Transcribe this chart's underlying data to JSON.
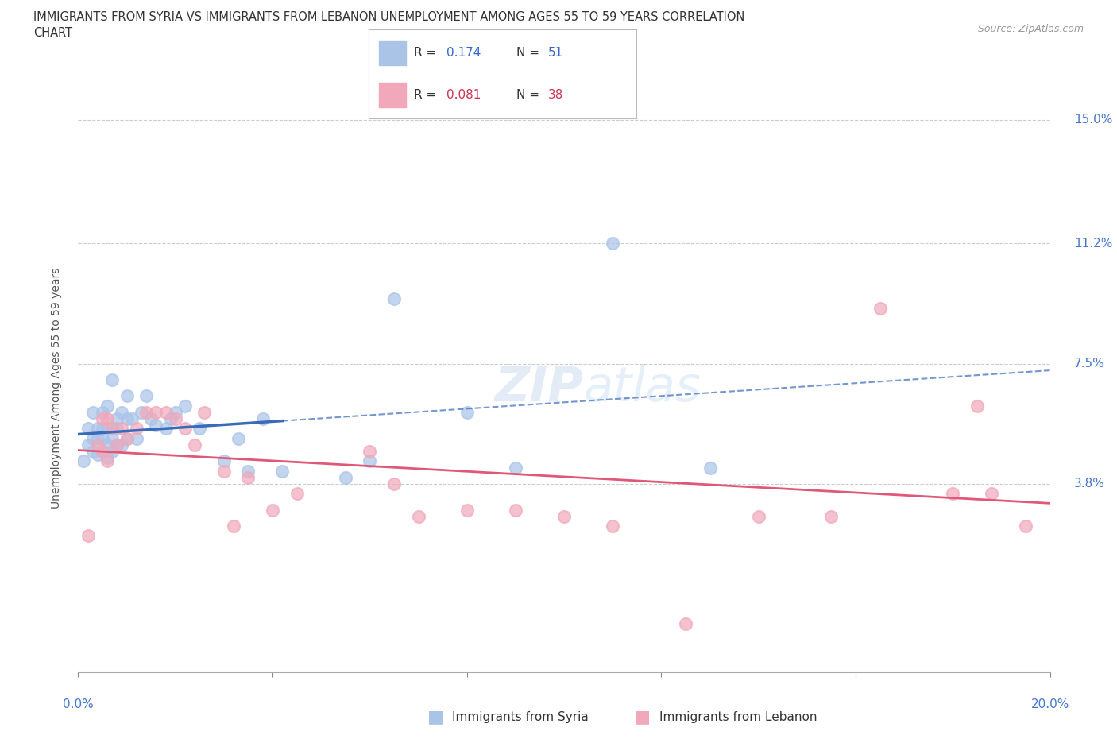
{
  "title_line1": "IMMIGRANTS FROM SYRIA VS IMMIGRANTS FROM LEBANON UNEMPLOYMENT AMONG AGES 55 TO 59 YEARS CORRELATION",
  "title_line2": "CHART",
  "source": "Source: ZipAtlas.com",
  "ylabel": "Unemployment Among Ages 55 to 59 years",
  "xlim": [
    0.0,
    0.2
  ],
  "ylim": [
    -0.02,
    0.155
  ],
  "xtick_positions": [
    0.0,
    0.04,
    0.08,
    0.12,
    0.16,
    0.2
  ],
  "ytick_vals": [
    0.15,
    0.112,
    0.075,
    0.038
  ],
  "ytick_labels": [
    "15.0%",
    "11.2%",
    "7.5%",
    "3.8%"
  ],
  "r_syria": 0.174,
  "n_syria": 51,
  "r_lebanon": 0.081,
  "n_lebanon": 38,
  "syria_color": "#aac4e8",
  "lebanon_color": "#f0a8ba",
  "syria_line_color": "#3a6bbb",
  "lebanon_line_color": "#e05878",
  "grid_color": "#cccccc",
  "bg_color": "#ffffff",
  "syria_x": [
    0.001,
    0.002,
    0.002,
    0.003,
    0.003,
    0.003,
    0.004,
    0.004,
    0.004,
    0.005,
    0.005,
    0.005,
    0.005,
    0.006,
    0.006,
    0.006,
    0.006,
    0.007,
    0.007,
    0.007,
    0.008,
    0.008,
    0.008,
    0.009,
    0.009,
    0.01,
    0.01,
    0.01,
    0.011,
    0.012,
    0.013,
    0.014,
    0.015,
    0.016,
    0.018,
    0.019,
    0.02,
    0.022,
    0.025,
    0.03,
    0.033,
    0.035,
    0.038,
    0.042,
    0.055,
    0.06,
    0.065,
    0.08,
    0.09,
    0.11,
    0.13
  ],
  "syria_y": [
    0.045,
    0.05,
    0.055,
    0.048,
    0.052,
    0.06,
    0.047,
    0.052,
    0.055,
    0.048,
    0.052,
    0.055,
    0.06,
    0.046,
    0.05,
    0.055,
    0.062,
    0.048,
    0.052,
    0.07,
    0.05,
    0.055,
    0.058,
    0.05,
    0.06,
    0.052,
    0.058,
    0.065,
    0.058,
    0.052,
    0.06,
    0.065,
    0.058,
    0.056,
    0.055,
    0.058,
    0.06,
    0.062,
    0.055,
    0.045,
    0.052,
    0.042,
    0.058,
    0.042,
    0.04,
    0.045,
    0.095,
    0.06,
    0.043,
    0.112,
    0.043
  ],
  "lebanon_x": [
    0.002,
    0.004,
    0.005,
    0.005,
    0.006,
    0.006,
    0.007,
    0.008,
    0.009,
    0.01,
    0.012,
    0.014,
    0.016,
    0.018,
    0.02,
    0.022,
    0.024,
    0.026,
    0.03,
    0.032,
    0.035,
    0.04,
    0.045,
    0.06,
    0.065,
    0.07,
    0.08,
    0.09,
    0.1,
    0.11,
    0.125,
    0.14,
    0.155,
    0.165,
    0.18,
    0.185,
    0.188,
    0.195
  ],
  "lebanon_y": [
    0.022,
    0.05,
    0.048,
    0.058,
    0.045,
    0.058,
    0.055,
    0.05,
    0.055,
    0.052,
    0.055,
    0.06,
    0.06,
    0.06,
    0.058,
    0.055,
    0.05,
    0.06,
    0.042,
    0.025,
    0.04,
    0.03,
    0.035,
    0.048,
    0.038,
    0.028,
    0.03,
    0.03,
    0.028,
    0.025,
    -0.005,
    0.028,
    0.028,
    0.092,
    0.035,
    0.062,
    0.035,
    0.025
  ]
}
